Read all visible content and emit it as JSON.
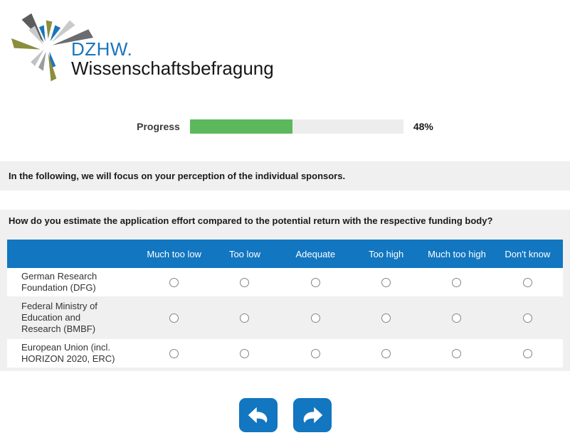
{
  "logo": {
    "brand": "DZHW.",
    "subtitle": "Wissenschaftsbefragung"
  },
  "progress": {
    "label": "Progress",
    "value": 48,
    "percent_text": "48%"
  },
  "intro_banner": {
    "text": "In the following, we will focus on your perception of the individual sponsors."
  },
  "question": {
    "text": "How do you estimate the application effort compared to the potential return with the respective funding body?"
  },
  "table": {
    "columns": [
      "Much too low",
      "Too low",
      "Adequate",
      "Too high",
      "Much too high",
      "Don't know"
    ],
    "rows": [
      {
        "label": "German Research Foundation (DFG)",
        "selected": null
      },
      {
        "label": "Federal Ministry of Education and Research (BMBF)",
        "selected": null
      },
      {
        "label": "European Union (incl. HORIZON 2020, ERC)",
        "selected": null
      }
    ]
  },
  "nav": {
    "back_icon": "back-arrow-icon",
    "forward_icon": "forward-arrow-icon"
  },
  "colors": {
    "accent_blue": "#1276c0",
    "logo_blue": "#1b75bb",
    "progress_green": "#5cb85c",
    "panel_gray": "#f0f0f0"
  }
}
